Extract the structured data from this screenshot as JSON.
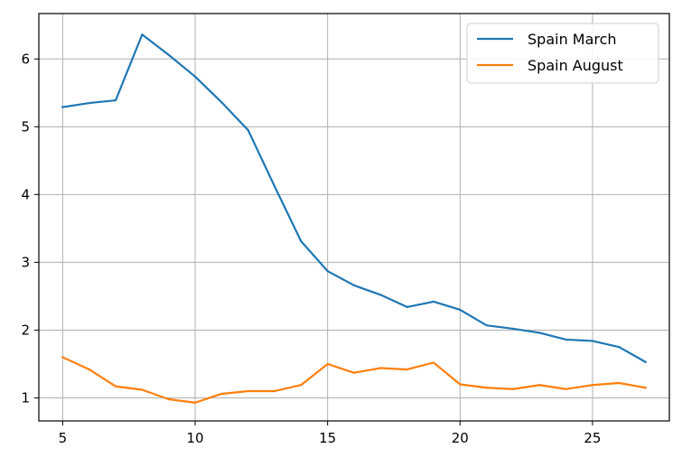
{
  "chart_data": {
    "type": "line",
    "title": "",
    "xlabel": "",
    "ylabel": "",
    "xlim": [
      4.1,
      27.9
    ],
    "ylim": [
      0.66,
      6.67
    ],
    "xticks": [
      5,
      10,
      15,
      20,
      25
    ],
    "yticks": [
      1,
      2,
      3,
      4,
      5,
      6
    ],
    "grid": true,
    "legend": "top-right",
    "x": [
      5,
      6,
      7,
      8,
      9,
      10,
      11,
      12,
      13,
      14,
      15,
      16,
      17,
      18,
      19,
      20,
      21,
      22,
      23,
      24,
      25,
      26,
      27
    ],
    "series": [
      {
        "name": "Spain March",
        "color": "#1f77b4",
        "values": [
          5.29,
          5.35,
          5.39,
          6.36,
          6.06,
          5.74,
          5.36,
          4.95,
          4.12,
          3.31,
          2.87,
          2.66,
          2.52,
          2.34,
          2.42,
          2.3,
          2.07,
          2.02,
          1.96,
          1.86,
          1.84,
          1.75,
          1.53
        ]
      },
      {
        "name": "Spain August",
        "color": "#ff7f0e",
        "values": [
          1.6,
          1.42,
          1.17,
          1.12,
          0.98,
          0.93,
          1.06,
          1.1,
          1.1,
          1.19,
          1.5,
          1.37,
          1.44,
          1.42,
          1.52,
          1.2,
          1.15,
          1.13,
          1.19,
          1.13,
          1.19,
          1.22,
          1.15
        ]
      }
    ]
  }
}
